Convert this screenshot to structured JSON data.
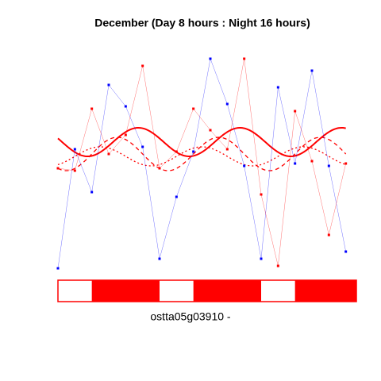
{
  "chart_data": {
    "type": "line",
    "title": "December (Day 8 hours : Night 16 hours)",
    "label": "ostta05g03910 -",
    "x": [
      0,
      4,
      8,
      12,
      16,
      20,
      24,
      28,
      32,
      36,
      40,
      44,
      48,
      52,
      56,
      60,
      64,
      68
    ],
    "xlim": [
      0,
      70.5
    ],
    "ylim": [
      0,
      100
    ],
    "series": [
      {
        "color": "#0000ff",
        "values": [
          4,
          54,
          36,
          81,
          72,
          55,
          8,
          34,
          53,
          92,
          73,
          47,
          8,
          80,
          48,
          87,
          47,
          11
        ]
      },
      {
        "color": "#ff0000",
        "values": [
          46,
          45,
          71,
          52,
          60,
          89,
          46,
          53,
          71,
          62,
          54,
          92,
          35,
          5,
          70,
          49,
          18,
          48
        ]
      }
    ],
    "curves": [
      {
        "style": "solid",
        "color": "#ff0000",
        "mean": 57,
        "amplitude": 6,
        "period": 24,
        "peak": 19
      },
      {
        "style": "dashed",
        "color": "#ff0000",
        "mean": 52,
        "amplitude": 7,
        "period": 24,
        "peak": 14
      },
      {
        "style": "dotted",
        "color": "#ff0000",
        "mean": 51,
        "amplitude": 4,
        "period": 24,
        "peak": 10
      }
    ],
    "light": [
      {
        "start": 0,
        "end": 8,
        "color": "#ffffff"
      },
      {
        "start": 8,
        "end": 24,
        "color": "#ff0000"
      },
      {
        "start": 24,
        "end": 32,
        "color": "#ffffff"
      },
      {
        "start": 32,
        "end": 48,
        "color": "#ff0000"
      },
      {
        "start": 48,
        "end": 56,
        "color": "#ffffff"
      },
      {
        "start": 56,
        "end": 70.5,
        "color": "#ff0000"
      }
    ]
  }
}
